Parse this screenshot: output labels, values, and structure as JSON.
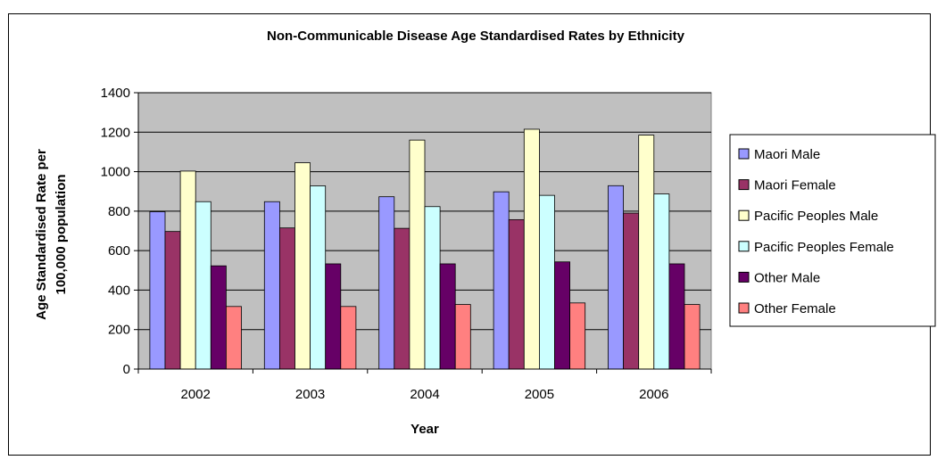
{
  "chart_data": {
    "type": "bar",
    "title": "Non-Communicable Disease Age Standardised Rates by Ethnicity",
    "xlabel": "Year",
    "ylabel": [
      "Age Standardised Rate per",
      "100,000 population"
    ],
    "categories": [
      "2002",
      "2003",
      "2004",
      "2005",
      "2006"
    ],
    "ylim": [
      0,
      1400
    ],
    "yticks": [
      "0",
      "200",
      "400",
      "600",
      "800",
      "1000",
      "1200",
      "1400"
    ],
    "grid": true,
    "legend_position": "right",
    "series": [
      {
        "name": "Maori Male",
        "color": "#9999ff",
        "values": [
          797,
          848,
          873,
          898,
          929
        ]
      },
      {
        "name": "Maori Female",
        "color": "#993366",
        "values": [
          697,
          715,
          713,
          757,
          790
        ]
      },
      {
        "name": "Pacific Peoples Male",
        "color": "#ffffcc",
        "values": [
          1003,
          1045,
          1160,
          1215,
          1185
        ]
      },
      {
        "name": "Pacific Peoples Female",
        "color": "#ccffff",
        "values": [
          848,
          928,
          823,
          880,
          887
        ]
      },
      {
        "name": "Other Male",
        "color": "#660066",
        "values": [
          523,
          533,
          533,
          543,
          533
        ]
      },
      {
        "name": "Other Female",
        "color": "#ff8080",
        "values": [
          317,
          317,
          327,
          335,
          327
        ]
      }
    ]
  }
}
